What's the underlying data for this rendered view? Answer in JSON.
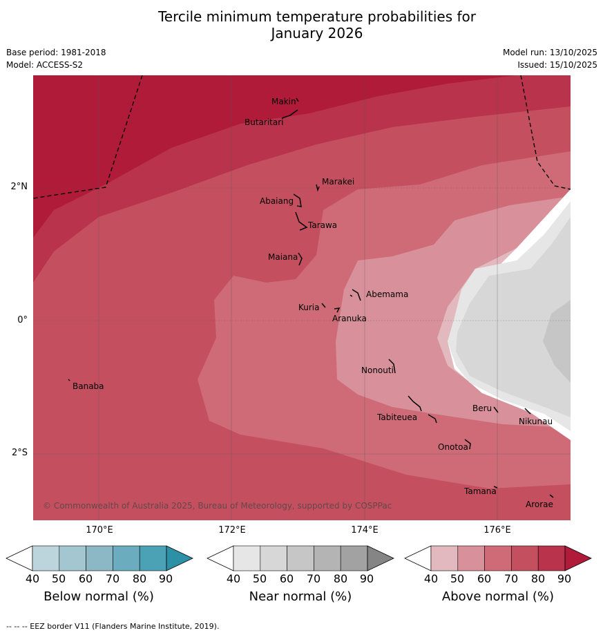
{
  "title": {
    "line1": "Tercile minimum temperature probabilities for",
    "line2": "January 2026"
  },
  "meta": {
    "base_period": "Base period: 1981-2018",
    "model": "Model: ACCESS-S2",
    "model_run": "Model run: 13/10/2025",
    "issued": "Issued: 15/10/2025"
  },
  "axes": {
    "lat_labels": [
      "2°N",
      "0°",
      "2°S"
    ],
    "lon_labels": [
      "170°E",
      "172°E",
      "174°E",
      "176°E"
    ]
  },
  "places": [
    "Makin",
    "Butaritari",
    "Marakei",
    "Abaiang",
    "Tarawa",
    "Maiana",
    "Abemama",
    "Kuria",
    "Aranuka",
    "Banaba",
    "Nonouti",
    "Tabiteuea",
    "Beru",
    "Nikunau",
    "Onotoa",
    "Tamana",
    "Arorae"
  ],
  "copyright": "© Commonwealth of Australia 2025, Bureau of Meteorology, supported by COSPPac",
  "colorbars": [
    {
      "title": "Below normal (%)",
      "ticks": [
        "40",
        "50",
        "60",
        "70",
        "80",
        "90"
      ],
      "colors": [
        "#ffffff",
        "#bcd5dd",
        "#a4c6d1",
        "#8cb8c6",
        "#6badbe",
        "#4aa2b4",
        "#2c90a6"
      ]
    },
    {
      "title": "Near normal (%)",
      "ticks": [
        "40",
        "50",
        "60",
        "70",
        "80",
        "90"
      ],
      "colors": [
        "#ffffff",
        "#e6e6e6",
        "#d7d7d7",
        "#c6c6c6",
        "#b4b4b4",
        "#a2a2a2",
        "#858585"
      ]
    },
    {
      "title": "Above normal (%)",
      "ticks": [
        "40",
        "50",
        "60",
        "70",
        "80",
        "90"
      ],
      "colors": [
        "#ffffff",
        "#e1b9bf",
        "#d8919a",
        "#ce6b77",
        "#c4505f",
        "#b8334b",
        "#b01b3a"
      ]
    }
  ],
  "footer": "--  --  -- EEZ border V11 (Flanders Marine Institute, 2019)."
}
